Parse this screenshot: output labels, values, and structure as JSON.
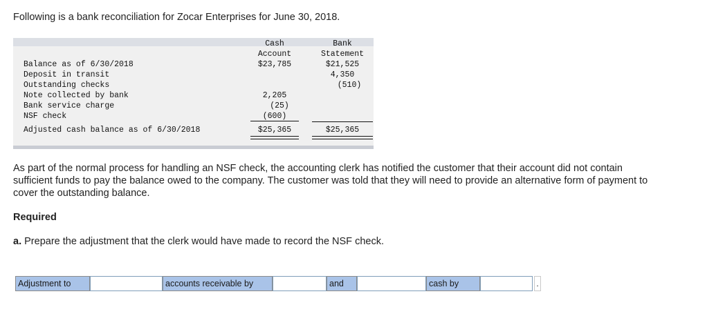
{
  "intro": "Following is a bank reconciliation for Zocar Enterprises for June 30, 2018.",
  "reconciliation": {
    "col1_header": [
      "Cash",
      "Account"
    ],
    "col2_header": [
      "Bank",
      "Statement"
    ],
    "rows": [
      {
        "label": "Balance as of 6/30/2018",
        "cash": "$23,785",
        "bank": "$21,525"
      },
      {
        "label": "Deposit in transit",
        "cash": "",
        "bank": "4,350"
      },
      {
        "label": "Outstanding checks",
        "cash": "",
        "bank": "(510)"
      },
      {
        "label": "Note collected by bank",
        "cash": "2,205",
        "bank": ""
      },
      {
        "label": "Bank service charge",
        "cash": "(25)",
        "bank": ""
      },
      {
        "label": "NSF check",
        "cash": "(600)",
        "bank": ""
      }
    ],
    "adjusted": {
      "label": "Adjusted cash balance as of 6/30/2018",
      "cash": "$25,365",
      "bank": "$25,365"
    }
  },
  "paragraph": "As part of the normal process for handling an NSF check, the accounting clerk has notified the customer that their account did not contain sufficient funds to pay the balance owed to the company. The customer was told that they will need to provide an alternative form of payment to cover the outstanding balance.",
  "required_heading": "Required",
  "question": {
    "letter": "a.",
    "text": "Prepare the adjustment that the clerk would have made to record the NSF check."
  },
  "answer_row": {
    "label1": "Adjustment to",
    "label2": "accounts receivable by",
    "label3": "and",
    "label4": "cash by",
    "input1_value": "",
    "input2_value": "",
    "input3_value": "",
    "input4_value": "",
    "end_mark": "."
  },
  "colors": {
    "label_bg": "#a9c3e8",
    "marker": "#2a6ebf",
    "table_bg": "#f0f0f0"
  }
}
